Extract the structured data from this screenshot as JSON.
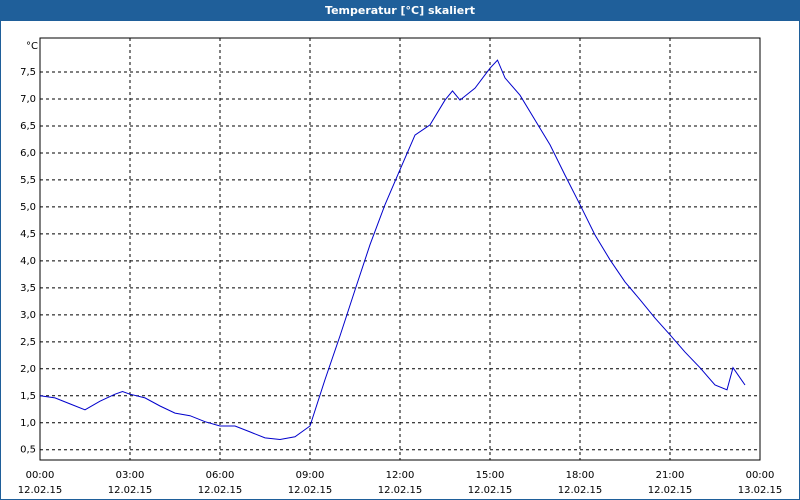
{
  "chart_data": {
    "type": "line",
    "title": "Temperatur [°C] skaliert",
    "y_unit": "°C",
    "x": [
      0,
      0.5,
      1,
      1.5,
      2,
      2.5,
      2.75,
      3,
      3.5,
      4,
      4.5,
      5,
      5.5,
      6,
      6.5,
      7,
      7.5,
      8,
      8.5,
      9,
      9.5,
      10,
      10.5,
      11,
      11.5,
      12,
      12.5,
      13,
      13.5,
      13.75,
      14,
      14.5,
      15,
      15.25,
      15.5,
      16,
      16.5,
      17,
      17.5,
      18,
      18.5,
      19,
      19.5,
      20,
      20.5,
      21,
      21.5,
      22,
      22.5,
      22.9,
      23.1,
      23.5
    ],
    "series": [
      {
        "name": "Temperatur",
        "color": "#0000cc",
        "values": [
          1.5,
          1.46,
          1.35,
          1.24,
          1.4,
          1.53,
          1.58,
          1.53,
          1.46,
          1.31,
          1.18,
          1.13,
          1.02,
          0.94,
          0.94,
          0.83,
          0.72,
          0.69,
          0.74,
          0.94,
          1.8,
          2.61,
          3.46,
          4.3,
          5.04,
          5.69,
          6.33,
          6.52,
          6.98,
          7.15,
          6.98,
          7.2,
          7.57,
          7.72,
          7.39,
          7.07,
          6.61,
          6.15,
          5.59,
          5.04,
          4.48,
          4.02,
          3.61,
          3.28,
          2.94,
          2.63,
          2.31,
          2.02,
          1.7,
          1.61,
          2.02,
          1.7
        ]
      }
    ],
    "xlim": [
      0,
      24
    ],
    "ylim": [
      0.31,
      8.13
    ],
    "xticks": [
      {
        "value": 0,
        "label": "00:00",
        "date": "12.02.15"
      },
      {
        "value": 3,
        "label": "03:00",
        "date": "12.02.15"
      },
      {
        "value": 6,
        "label": "06:00",
        "date": "12.02.15"
      },
      {
        "value": 9,
        "label": "09:00",
        "date": "12.02.15"
      },
      {
        "value": 12,
        "label": "12:00",
        "date": "12.02.15"
      },
      {
        "value": 15,
        "label": "15:00",
        "date": "12.02.15"
      },
      {
        "value": 18,
        "label": "18:00",
        "date": "12.02.15"
      },
      {
        "value": 21,
        "label": "21:00",
        "date": "12.02.15"
      },
      {
        "value": 24,
        "label": "00:00",
        "date": "13.02.15"
      }
    ],
    "yticks": [
      {
        "value": 0.5,
        "label": "0,5"
      },
      {
        "value": 1,
        "label": "1,0"
      },
      {
        "value": 1.5,
        "label": "1,5"
      },
      {
        "value": 2,
        "label": "2,0"
      },
      {
        "value": 2.5,
        "label": "2,5"
      },
      {
        "value": 3,
        "label": "3,0"
      },
      {
        "value": 3.5,
        "label": "3,5"
      },
      {
        "value": 4,
        "label": "4,0"
      },
      {
        "value": 4.5,
        "label": "4,5"
      },
      {
        "value": 5,
        "label": "5,0"
      },
      {
        "value": 5.5,
        "label": "5,5"
      },
      {
        "value": 6,
        "label": "6,0"
      },
      {
        "value": 6.5,
        "label": "6,5"
      },
      {
        "value": 7,
        "label": "7,0"
      },
      {
        "value": 7.5,
        "label": "7,5"
      }
    ],
    "grid": true
  }
}
